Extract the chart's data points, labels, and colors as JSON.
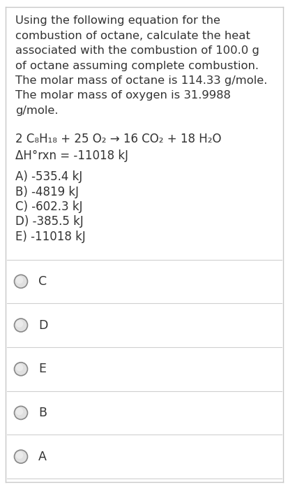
{
  "background_color": "#ffffff",
  "border_color": "#c8c8c8",
  "paragraph_lines": [
    "Using the following equation for the",
    "combustion of octane, calculate the heat",
    "associated with the combustion of 100.0 g",
    "of octane assuming complete combustion.",
    "The molar mass of octane is 114.33 g/mole.",
    "The molar mass of oxygen is 31.9988",
    "g/mole."
  ],
  "equation_line1": "2 C₈H₁₈ + 25 O₂ → 16 CO₂ + 18 H₂O",
  "equation_line2": "ΔH°rxn = -11018 kJ",
  "choices": [
    "A) -535.4 kJ",
    "B) -4819 kJ",
    "C) -602.3 kJ",
    "D) -385.5 kJ",
    "E) -11018 kJ"
  ],
  "radio_options": [
    "C",
    "D",
    "E",
    "B",
    "A"
  ],
  "text_color": "#333333",
  "line_color": "#d0d0d0",
  "font_size_paragraph": 11.8,
  "font_size_equation": 12.0,
  "font_size_choices": 12.0,
  "font_size_radio": 12.5,
  "fig_width": 4.14,
  "fig_height": 7.0,
  "dpi": 100
}
